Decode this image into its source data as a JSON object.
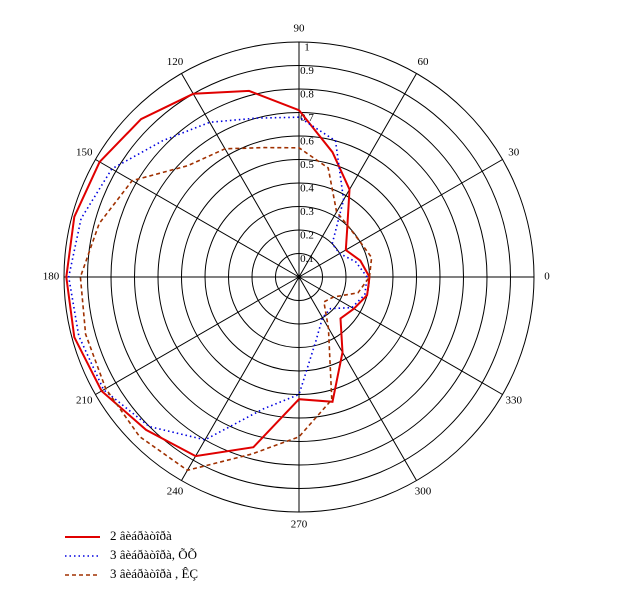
{
  "chart_data": {
    "type": "polar",
    "theta": [
      0,
      15,
      30,
      45,
      60,
      75,
      90,
      105,
      120,
      135,
      150,
      165,
      180,
      195,
      210,
      225,
      240,
      255,
      270,
      285,
      300,
      315,
      330,
      345
    ],
    "rlim": [
      0,
      1
    ],
    "rticks": [
      0.1,
      0.2,
      0.3,
      0.4,
      0.5,
      0.6,
      0.7,
      0.8,
      0.9,
      1
    ],
    "thetaticks": [
      0,
      30,
      60,
      90,
      120,
      150,
      180,
      210,
      240,
      270,
      300,
      330
    ],
    "grid": true,
    "series": [
      {
        "name": "2 âèáðàòîðà",
        "color": "#e00000",
        "style": "solid",
        "values": [
          0.3,
          0.27,
          0.23,
          0.29,
          0.43,
          0.55,
          0.71,
          0.82,
          0.9,
          0.95,
          0.98,
          0.99,
          0.99,
          0.99,
          0.97,
          0.92,
          0.88,
          0.75,
          0.52,
          0.55,
          0.37,
          0.25,
          0.27,
          0.3
        ]
      },
      {
        "name": "3 âèáðàòîðà, ÕÕ",
        "color": "#0000e0",
        "style": "dotted",
        "values": [
          0.29,
          0.25,
          0.2,
          0.2,
          0.38,
          0.6,
          0.68,
          0.7,
          0.76,
          0.82,
          0.92,
          0.96,
          0.98,
          0.97,
          0.96,
          0.9,
          0.8,
          0.58,
          0.5,
          0.28,
          0.2,
          0.19,
          0.26,
          0.29
        ]
      },
      {
        "name": "3 âèáðàòîðà , ÊÇ",
        "color": "#a03000",
        "style": "dashed",
        "values": [
          0.3,
          0.32,
          0.3,
          0.3,
          0.32,
          0.48,
          0.55,
          0.57,
          0.63,
          0.67,
          0.82,
          0.88,
          0.93,
          0.94,
          0.95,
          0.96,
          0.95,
          0.78,
          0.68,
          0.54,
          0.25,
          0.15,
          0.17,
          0.26
        ]
      }
    ]
  }
}
